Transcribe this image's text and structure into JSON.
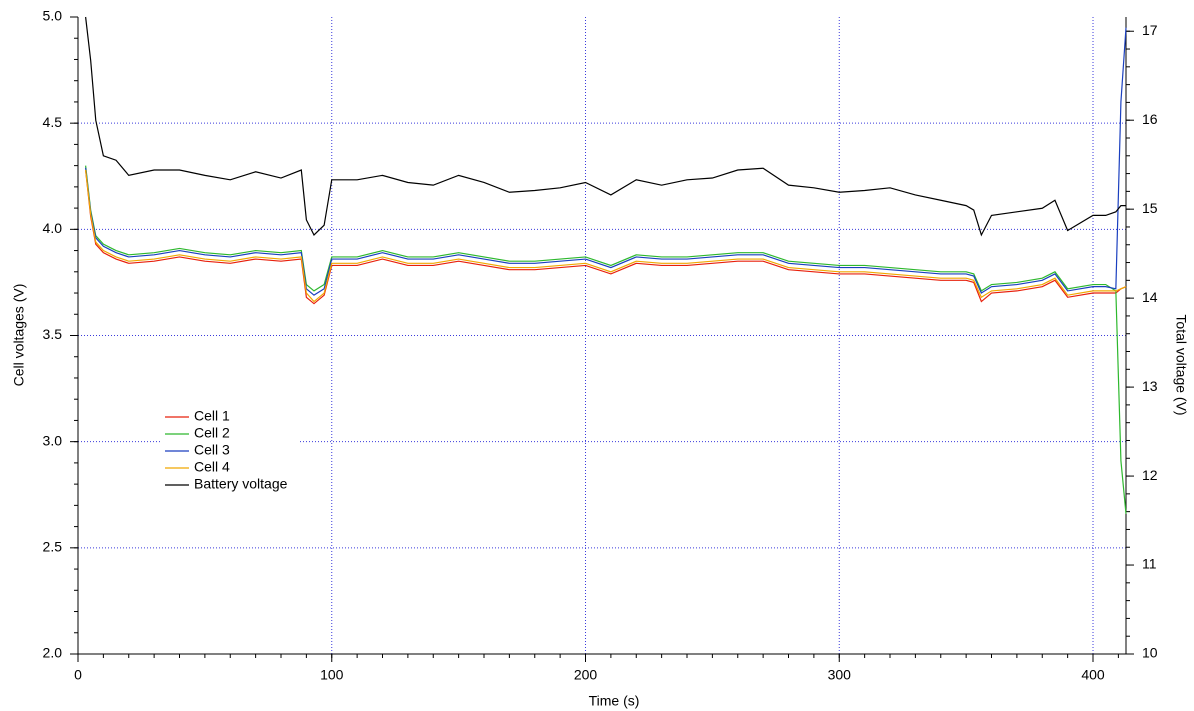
{
  "chart_data": {
    "type": "line",
    "xlabel": "Time (s)",
    "ylabel": "Cell voltages (V)",
    "y2label": "Total voltage (V)",
    "x": [
      3,
      5,
      7,
      10,
      15,
      20,
      30,
      40,
      50,
      60,
      70,
      80,
      88,
      90,
      93,
      97,
      100,
      110,
      120,
      130,
      140,
      150,
      160,
      170,
      180,
      190,
      200,
      210,
      220,
      230,
      240,
      250,
      260,
      270,
      280,
      290,
      300,
      310,
      320,
      330,
      340,
      350,
      353,
      356,
      360,
      370,
      380,
      385,
      390,
      400,
      405,
      409,
      411,
      413
    ],
    "series": [
      {
        "name": "Cell 1",
        "color": "#e8200c",
        "values": [
          4.28,
          4.06,
          3.93,
          3.89,
          3.86,
          3.84,
          3.85,
          3.87,
          3.85,
          3.84,
          3.86,
          3.85,
          3.86,
          3.68,
          3.65,
          3.69,
          3.83,
          3.83,
          3.86,
          3.83,
          3.83,
          3.85,
          3.83,
          3.81,
          3.81,
          3.82,
          3.83,
          3.79,
          3.84,
          3.83,
          3.83,
          3.84,
          3.85,
          3.85,
          3.81,
          3.8,
          3.79,
          3.79,
          3.78,
          3.77,
          3.76,
          3.76,
          3.75,
          3.66,
          3.7,
          3.71,
          3.73,
          3.76,
          3.68,
          3.7,
          3.7,
          3.7,
          3.72,
          3.73
        ]
      },
      {
        "name": "Cell 2",
        "color": "#2db82d",
        "values": [
          4.3,
          4.09,
          3.97,
          3.93,
          3.9,
          3.88,
          3.89,
          3.91,
          3.89,
          3.88,
          3.9,
          3.89,
          3.9,
          3.74,
          3.71,
          3.74,
          3.87,
          3.87,
          3.9,
          3.87,
          3.87,
          3.89,
          3.87,
          3.85,
          3.85,
          3.86,
          3.87,
          3.83,
          3.88,
          3.87,
          3.87,
          3.88,
          3.89,
          3.89,
          3.85,
          3.84,
          3.83,
          3.83,
          3.82,
          3.81,
          3.8,
          3.8,
          3.79,
          3.71,
          3.74,
          3.75,
          3.77,
          3.8,
          3.72,
          3.74,
          3.74,
          3.71,
          2.91,
          2.66
        ]
      },
      {
        "name": "Cell 3",
        "color": "#1a3fbf",
        "values": [
          4.29,
          4.08,
          3.96,
          3.92,
          3.89,
          3.87,
          3.88,
          3.9,
          3.88,
          3.87,
          3.89,
          3.88,
          3.89,
          3.72,
          3.69,
          3.72,
          3.86,
          3.86,
          3.89,
          3.86,
          3.86,
          3.88,
          3.86,
          3.84,
          3.84,
          3.85,
          3.86,
          3.82,
          3.87,
          3.86,
          3.86,
          3.87,
          3.88,
          3.88,
          3.84,
          3.83,
          3.82,
          3.82,
          3.81,
          3.8,
          3.79,
          3.79,
          3.78,
          3.7,
          3.73,
          3.74,
          3.76,
          3.79,
          3.71,
          3.73,
          3.73,
          3.72,
          4.6,
          4.95
        ]
      },
      {
        "name": "Cell 4",
        "color": "#f0a800",
        "values": [
          4.28,
          4.07,
          3.94,
          3.9,
          3.87,
          3.85,
          3.86,
          3.88,
          3.86,
          3.85,
          3.87,
          3.86,
          3.87,
          3.7,
          3.66,
          3.7,
          3.84,
          3.84,
          3.87,
          3.84,
          3.84,
          3.86,
          3.84,
          3.82,
          3.82,
          3.83,
          3.84,
          3.8,
          3.85,
          3.84,
          3.84,
          3.85,
          3.86,
          3.86,
          3.82,
          3.81,
          3.8,
          3.8,
          3.79,
          3.78,
          3.77,
          3.77,
          3.76,
          3.68,
          3.71,
          3.72,
          3.74,
          3.77,
          3.69,
          3.71,
          3.71,
          3.71,
          3.72,
          3.73
        ]
      },
      {
        "name": "Battery voltage",
        "color": "#000000",
        "axis": "y2",
        "values": [
          17.16,
          16.67,
          16.0,
          15.6,
          15.55,
          15.38,
          15.44,
          15.44,
          15.38,
          15.33,
          15.42,
          15.35,
          15.44,
          14.88,
          14.71,
          14.82,
          15.33,
          15.33,
          15.38,
          15.3,
          15.27,
          15.38,
          15.3,
          15.19,
          15.21,
          15.24,
          15.3,
          15.16,
          15.33,
          15.27,
          15.33,
          15.35,
          15.44,
          15.46,
          15.27,
          15.24,
          15.19,
          15.21,
          15.24,
          15.16,
          15.1,
          15.04,
          14.99,
          14.71,
          14.93,
          14.97,
          15.01,
          15.1,
          14.76,
          14.93,
          14.93,
          14.97,
          15.04,
          15.04
        ]
      }
    ],
    "xlim": [
      0,
      413
    ],
    "xticks": [
      0,
      100,
      200,
      300,
      400
    ],
    "ylim": [
      2,
      5
    ],
    "yticks": [
      {
        "value": 2,
        "label": "2.0"
      },
      {
        "value": 2.5,
        "label": "2.5"
      },
      {
        "value": 3,
        "label": "3.0"
      },
      {
        "value": 3.5,
        "label": "3.5"
      },
      {
        "value": 4,
        "label": "4.0"
      },
      {
        "value": 4.5,
        "label": "4.5"
      },
      {
        "value": 5,
        "label": "5.0"
      }
    ],
    "y2lim": [
      10,
      17.16
    ],
    "y2ticks": [
      10,
      11,
      12,
      13,
      14,
      15,
      16,
      17
    ],
    "grid": true
  }
}
